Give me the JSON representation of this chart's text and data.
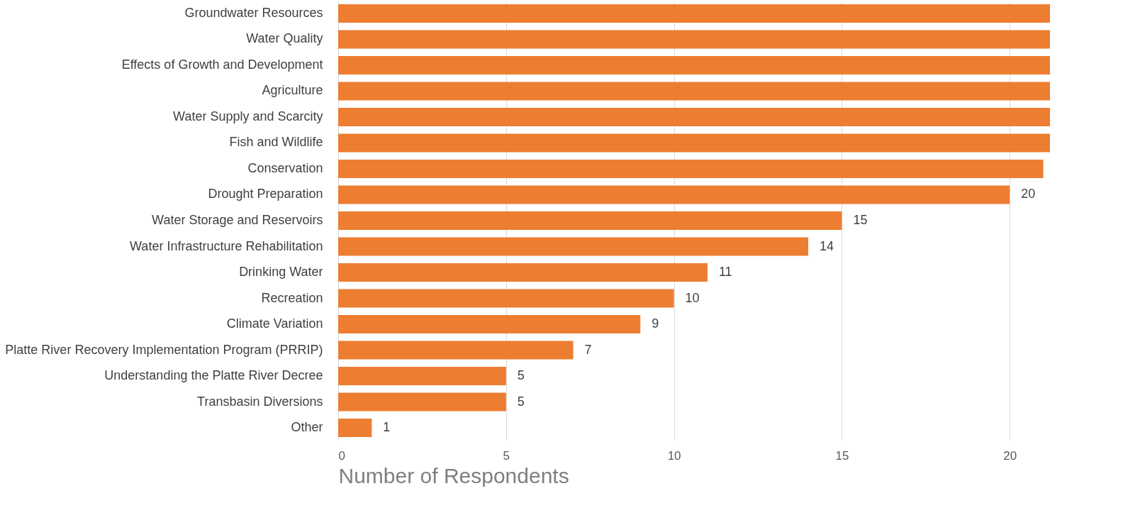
{
  "chart_data": {
    "type": "bar",
    "orientation": "horizontal",
    "xlabel": "Number of Respondents",
    "categories": [
      "Groundwater Resources",
      "Water Quality",
      "Effects of Growth and Development",
      "Agriculture",
      "Water Supply and Scarcity",
      "Fish and Wildlife",
      "Conservation",
      "Drought Preparation",
      "Water Storage and Reservoirs",
      "Water Infrastructure Rehabilitation",
      "Drinking Water",
      "Recreation",
      "Climate Variation",
      "Platte River Recovery Implementation Program (PRRIP)",
      "Understanding the Platte River Decree",
      "Transbasin Diversions",
      "Other"
    ],
    "values": [
      21.2,
      21.2,
      21.2,
      21.2,
      21.2,
      21.2,
      21,
      20,
      15,
      14,
      11,
      10,
      9,
      7,
      5,
      5,
      1
    ],
    "value_labels": [
      null,
      null,
      null,
      null,
      null,
      null,
      null,
      "20",
      "15",
      "14",
      "11",
      "10",
      "9",
      "7",
      "5",
      "5",
      "1"
    ],
    "color": "#ed7d31",
    "xlim": [
      0,
      21.2
    ],
    "xticks": [
      0,
      5,
      10,
      15,
      20
    ],
    "grid": "x"
  }
}
